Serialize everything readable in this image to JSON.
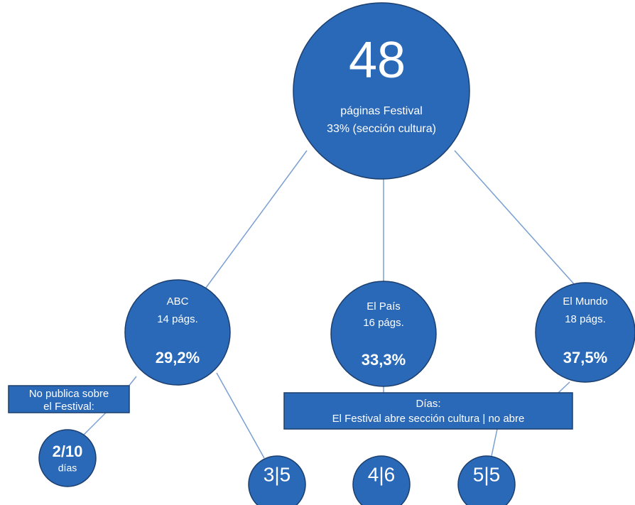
{
  "root": {
    "value": "48",
    "line1": "páginas Festival",
    "line2": "33% (sección cultura)"
  },
  "papers": [
    {
      "name": "ABC",
      "pages": "14 págs.",
      "share": "29,2%"
    },
    {
      "name": "El País",
      "pages": "16 págs.",
      "share": "33,3%"
    },
    {
      "name": "El Mundo",
      "pages": "18 págs.",
      "share": "37,5%"
    }
  ],
  "no_publish_box": {
    "line1": "No publica sobre",
    "line2": "el Festival:"
  },
  "no_publish_circle": {
    "value": "2/10",
    "unit": "días"
  },
  "days_box": {
    "line1": "Días:",
    "line2": "El Festival abre sección cultura | no abre"
  },
  "days": [
    "3|5",
    "4|6",
    "5|5"
  ]
}
